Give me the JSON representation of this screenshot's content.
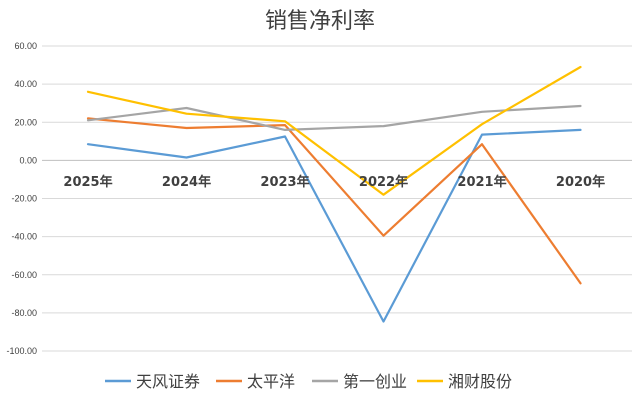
{
  "chart_data": {
    "type": "line",
    "title": "销售净利率",
    "categories": [
      "2025年",
      "2024年",
      "2023年",
      "2022年",
      "2021年",
      "2020年"
    ],
    "ylim": [
      -100,
      60
    ],
    "yticks": [
      "60.00",
      "40.00",
      "20.00",
      "0.00",
      "-20.00",
      "-40.00",
      "-60.00",
      "-80.00",
      "-100.00"
    ],
    "grid": true,
    "legend_position": "bottom",
    "series": [
      {
        "name": "天风证券",
        "color": "#5b9bd5",
        "values": [
          8.5,
          1.5,
          12.5,
          -84.5,
          13.5,
          16
        ]
      },
      {
        "name": "太平洋",
        "color": "#ed7d31",
        "values": [
          22,
          17,
          18.5,
          -39.5,
          8.5,
          -64.5
        ]
      },
      {
        "name": "第一创业",
        "color": "#a5a5a5",
        "values": [
          21,
          27.5,
          16,
          18,
          25.5,
          28.5
        ]
      },
      {
        "name": "湘财股份",
        "color": "#ffc000",
        "values": [
          36,
          24.5,
          20.5,
          -18,
          19,
          49
        ]
      }
    ]
  }
}
